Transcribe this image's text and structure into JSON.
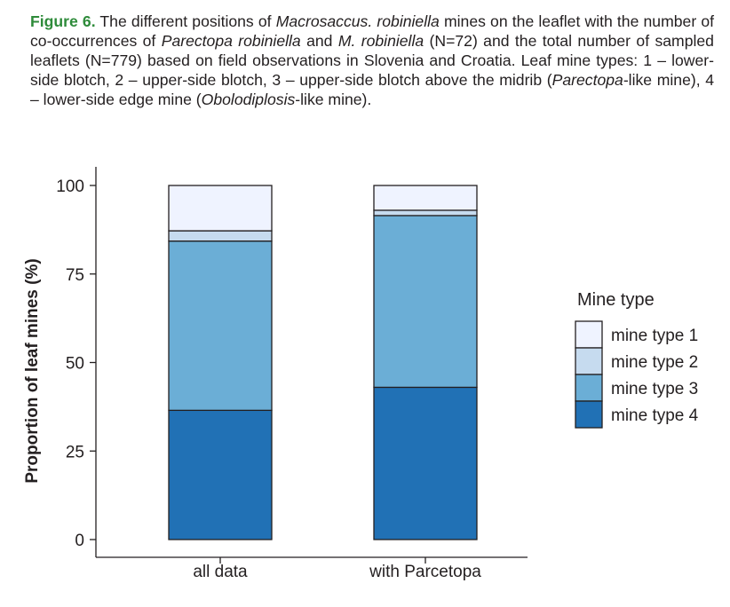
{
  "caption": {
    "label": "Figure 6.",
    "segments": [
      {
        "t": " The different positions of ",
        "i": false
      },
      {
        "t": "Macrosaccus. robiniella",
        "i": true
      },
      {
        "t": " mines on the leaflet with the number of co-occurrences of ",
        "i": false
      },
      {
        "t": "Parectopa robiniella",
        "i": true
      },
      {
        "t": " and ",
        "i": false
      },
      {
        "t": "M. robiniella",
        "i": true
      },
      {
        "t": " (N=72) and the total number of sampled leaflets (N=779) based on field observations in Slovenia and Croatia. Leaf mine types: 1 – lower-side blotch, 2 – upper-side blotch, 3 – upper-side blotch above the midrib (",
        "i": false
      },
      {
        "t": "Parectopa",
        "i": true
      },
      {
        "t": "-like mine), 4 – lower-side edge mine (",
        "i": false
      },
      {
        "t": "Obolodiplosis",
        "i": true
      },
      {
        "t": "-like mine).",
        "i": false
      }
    ]
  },
  "chart_data": {
    "type": "bar",
    "stacked": true,
    "categories": [
      "all data",
      "with Parcetopa"
    ],
    "series": [
      {
        "name": "mine type 4",
        "color": "#2171b5",
        "values": [
          36.5,
          43.0
        ]
      },
      {
        "name": "mine type 3",
        "color": "#6baed6",
        "values": [
          47.8,
          48.5
        ]
      },
      {
        "name": "mine type 2",
        "color": "#c6dbef",
        "values": [
          2.9,
          1.5
        ]
      },
      {
        "name": "mine type 1",
        "color": "#eff3ff",
        "values": [
          12.8,
          7.0
        ]
      }
    ],
    "ylabel": "Proportion of leaf mines (%)",
    "xlabel": "",
    "ylim": [
      0,
      100
    ],
    "yticks": [
      0,
      25,
      50,
      75,
      100
    ],
    "grid": false,
    "legend": {
      "title": "Mine type",
      "position": "right",
      "entries": [
        "mine type 1",
        "mine type 2",
        "mine type 3",
        "mine type 4"
      ]
    }
  }
}
